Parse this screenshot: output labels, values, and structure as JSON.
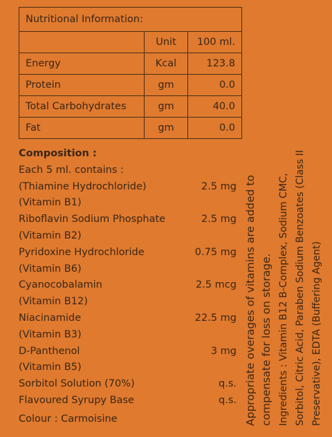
{
  "table": {
    "title": "Nutritional Information:",
    "header": [
      "Unit",
      "100 ml."
    ],
    "rows": [
      [
        "Energy",
        "Kcal",
        "123.8"
      ],
      [
        "Protein",
        "gm",
        "0.0"
      ],
      [
        "Total Carbohydrates",
        "gm",
        "40.0"
      ],
      [
        "Fat",
        "gm",
        "0.0"
      ]
    ]
  },
  "composition": {
    "title": "Composition :",
    "intro": "Each 5 ml. contains :",
    "items": [
      {
        "name": [
          "(Thiamine Hydrochloride)",
          "(Vitamin B1)"
        ],
        "amount": "2.5 mg"
      },
      {
        "name": [
          "Riboflavin Sodium Phosphate",
          "(Vitamin B2)"
        ],
        "amount": "2.5 mg"
      },
      {
        "name": [
          "Pyridoxine Hydrochloride",
          "(Vitamin B6)"
        ],
        "amount": "0.75 mg"
      },
      {
        "name": [
          "Cyanocobalamin",
          "(Vitamin B12)"
        ],
        "amount": "2.5 mcg"
      },
      {
        "name": [
          "Niacinamide",
          "(Vitamin B3)"
        ],
        "amount": "22.5 mg"
      },
      {
        "name": [
          "D-Panthenol",
          "(Vitamin B5)"
        ],
        "amount": "3 mg"
      },
      {
        "name": [
          "Sorbitol Solution (70%)"
        ],
        "amount": "q.s."
      },
      {
        "name": [
          "Flavoured Syrupy Base"
        ],
        "amount": "q.s."
      }
    ],
    "colour": "Colour : Carmoisine"
  },
  "note": [
    "Appropriate overages of vitamins are added to",
    "compensate for loss on storage."
  ],
  "ingredients": [
    "Ingredients : Vitamin B12 B-Complex, Sodium CMC,",
    "Sorbitol, Citric Acid, Paraben Sodium Benzoates (Class II",
    "Preservative), EDTA (Buffering Agent)"
  ]
}
